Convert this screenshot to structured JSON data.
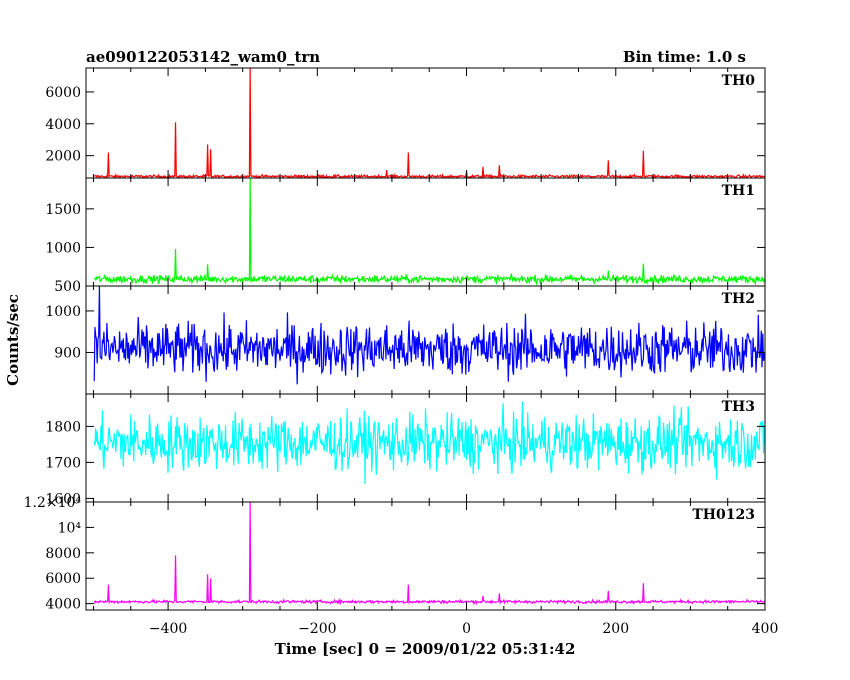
{
  "header": {
    "title": "ae090122053142_wam0_trn",
    "bin_time": "Bin time: 1.0 s"
  },
  "chart_data": {
    "type": "line",
    "x_range": [
      -510,
      400
    ],
    "xlabel": "Time [sec] 0 = 2009/01/22 05:31:42",
    "ylabel": "Counts/sec",
    "x_ticks": [
      -400,
      -200,
      0,
      200,
      400
    ],
    "panels": [
      {
        "name": "TH0",
        "color": "#ff0000",
        "ylim": [
          600,
          7500
        ],
        "yticks": [
          2000,
          4000,
          6000
        ],
        "baseline": 700,
        "noise": 60,
        "spikes": [
          [
            -480,
            2200
          ],
          [
            -390,
            4100
          ],
          [
            -347,
            2700
          ],
          [
            -343,
            2400
          ],
          [
            -290,
            7500
          ],
          [
            -107,
            1100
          ],
          [
            -78,
            2200
          ],
          [
            0,
            1000
          ],
          [
            22,
            1300
          ],
          [
            44,
            1400
          ],
          [
            190,
            1700
          ],
          [
            237,
            2300
          ]
        ]
      },
      {
        "name": "TH1",
        "color": "#00ff00",
        "ylim": [
          500,
          1900
        ],
        "yticks": [
          500,
          1000,
          1500
        ],
        "baseline": 590,
        "noise": 35,
        "spikes": [
          [
            -390,
            980
          ],
          [
            -347,
            780
          ],
          [
            -290,
            1900
          ],
          [
            190,
            700
          ],
          [
            237,
            790
          ]
        ]
      },
      {
        "name": "TH2",
        "color": "#0000ff",
        "ylim": [
          800,
          1060
        ],
        "yticks": [
          900,
          1000
        ],
        "baseline": 908,
        "noise": 45,
        "spikes": [
          [
            -492,
            1060
          ]
        ]
      },
      {
        "name": "TH3",
        "color": "#00ffff",
        "ylim": [
          1590,
          1890
        ],
        "yticks": [
          1600,
          1700,
          1800
        ],
        "baseline": 1755,
        "noise": 55,
        "spikes": []
      },
      {
        "name": "TH0123",
        "color": "#ff00ff",
        "ylim": [
          3500,
          12000
        ],
        "yticks": [
          4000,
          6000,
          8000,
          10000,
          12000
        ],
        "ytick_labels": [
          "4000",
          "6000",
          "8000",
          "10⁴",
          "1.2×10⁴"
        ],
        "baseline": 4150,
        "noise": 80,
        "spikes": [
          [
            -480,
            5500
          ],
          [
            -390,
            7800
          ],
          [
            -347,
            6300
          ],
          [
            -343,
            6000
          ],
          [
            -290,
            12000
          ],
          [
            -78,
            5500
          ],
          [
            22,
            4600
          ],
          [
            44,
            4800
          ],
          [
            190,
            5000
          ],
          [
            237,
            5600
          ]
        ]
      }
    ]
  }
}
